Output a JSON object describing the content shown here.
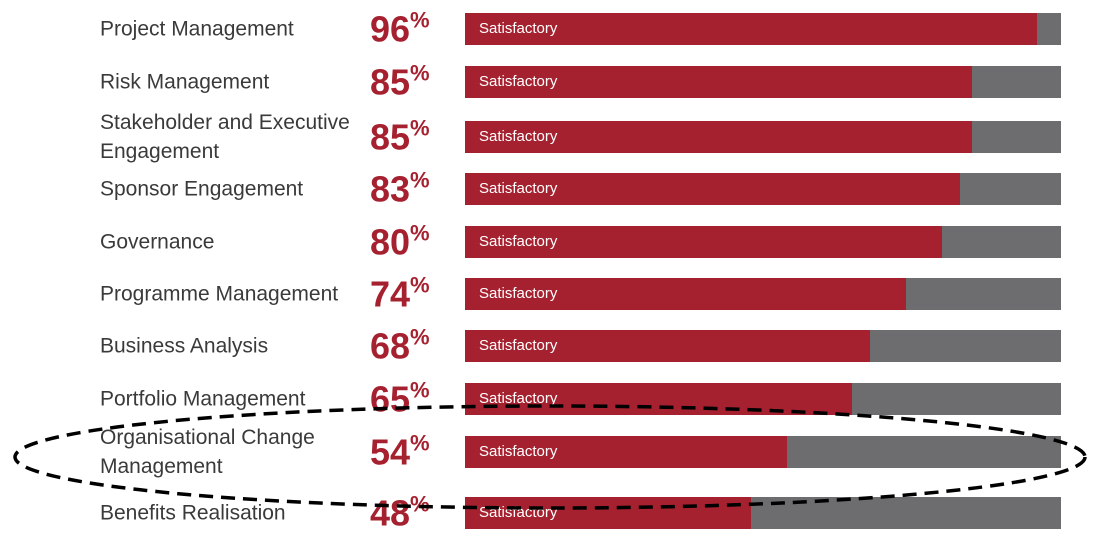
{
  "chart_data": {
    "type": "bar",
    "orientation": "horizontal",
    "value_unit": "%",
    "bar_max": 100,
    "bar_color": "#a6212f",
    "track_color": "#6d6d6f",
    "value_color": "#a6212f",
    "status_label": "Satisfactory",
    "categories": [
      "Project Management",
      "Risk Management",
      "Stakeholder and Executive Engagement",
      "Sponsor Engagement",
      "Governance",
      "Programme Management",
      "Business Analysis",
      "Portfolio Management",
      "Organisational Change Management",
      "Benefits Realisation"
    ],
    "values": [
      96,
      85,
      85,
      83,
      80,
      74,
      68,
      65,
      54,
      48
    ],
    "annotation": {
      "shape": "dashed-ellipse",
      "highlighted_category": "Organisational Change Management"
    }
  }
}
